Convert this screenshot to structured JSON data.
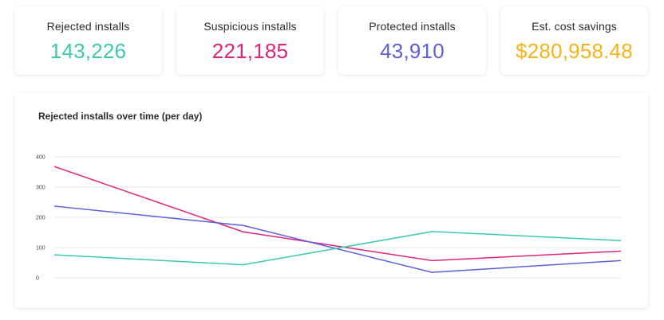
{
  "kpis": [
    {
      "label": "Rejected installs",
      "value": "143,226",
      "color": "#3cc9b0"
    },
    {
      "label": "Suspicious installs",
      "value": "221,185",
      "color": "#e0237a"
    },
    {
      "label": "Protected installs",
      "value": "43,910",
      "color": "#5b5fd9"
    },
    {
      "label": "Est. cost savings",
      "value": "$280,958.48",
      "color": "#f7b418"
    }
  ],
  "chart_data": {
    "type": "line",
    "title": "Rejected installs over time (per day)",
    "xlabel": "",
    "ylabel": "",
    "ylim": [
      0,
      400
    ],
    "yticks": [
      0,
      100,
      200,
      300,
      400
    ],
    "grid": true,
    "x": [
      0,
      1,
      2,
      3
    ],
    "series": [
      {
        "color": "#e0237a",
        "values": [
          368,
          152,
          57,
          88
        ]
      },
      {
        "color": "#5b5fd9",
        "values": [
          237,
          173,
          18,
          57
        ]
      },
      {
        "color": "#3cc9b0",
        "values": [
          76,
          43,
          153,
          123
        ]
      }
    ]
  }
}
